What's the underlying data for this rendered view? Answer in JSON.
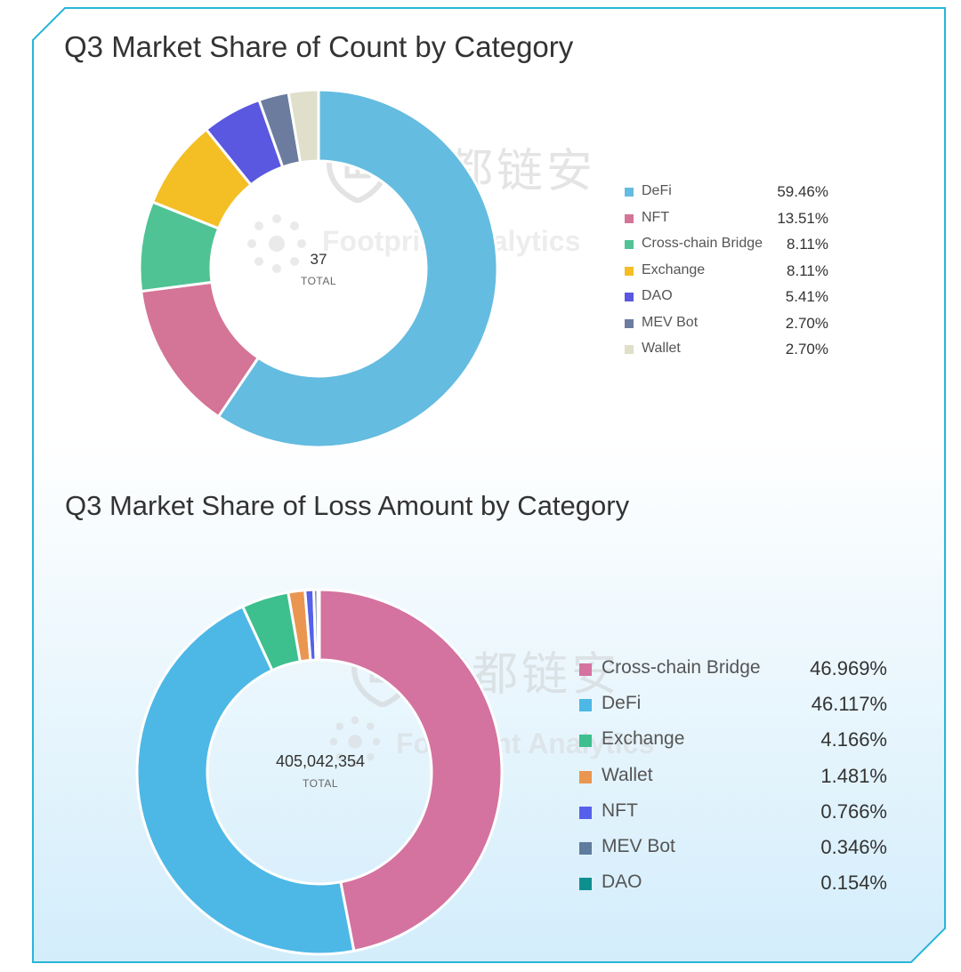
{
  "chart_data": [
    {
      "type": "pie",
      "title": "Q3 Market Share of Count by Category",
      "center_value": "37",
      "center_label": "TOTAL",
      "legend_position": "right",
      "categories": [
        "DeFi",
        "NFT",
        "Cross-chain Bridge",
        "Exchange",
        "DAO",
        "MEV Bot",
        "Wallet"
      ],
      "values": [
        59.46,
        13.51,
        8.11,
        8.11,
        5.41,
        2.7,
        2.7
      ],
      "value_labels": [
        "59.46%",
        "13.51%",
        "8.11%",
        "8.11%",
        "5.41%",
        "2.70%",
        "2.70%"
      ],
      "colors": [
        "#64BCE0",
        "#D47496",
        "#4FC394",
        "#F4BE25",
        "#5A57E0",
        "#6B7C9F",
        "#DFDFCB"
      ]
    },
    {
      "type": "pie",
      "title": "Q3 Market Share of Loss Amount by Category",
      "center_value": "405,042,354",
      "center_label": "TOTAL",
      "legend_position": "right",
      "categories": [
        "Cross-chain Bridge",
        "DeFi",
        "Exchange",
        "Wallet",
        "NFT",
        "MEV Bot",
        "DAO"
      ],
      "values": [
        46.969,
        46.117,
        4.166,
        1.481,
        0.766,
        0.346,
        0.154
      ],
      "value_labels": [
        "46.969%",
        "46.117%",
        "4.166%",
        "1.481%",
        "0.766%",
        "0.346%",
        "0.154%"
      ],
      "colors": [
        "#D472A0",
        "#4DB8E6",
        "#3DBF8E",
        "#EA9650",
        "#5561EA",
        "#5F7C9E",
        "#0E8F8F"
      ]
    }
  ],
  "watermarks": [
    "成都链安",
    "Footprint Analytics"
  ],
  "theme": {
    "frame_stroke": "#29B6D8",
    "bg_bottom": "#D3EDFB"
  }
}
